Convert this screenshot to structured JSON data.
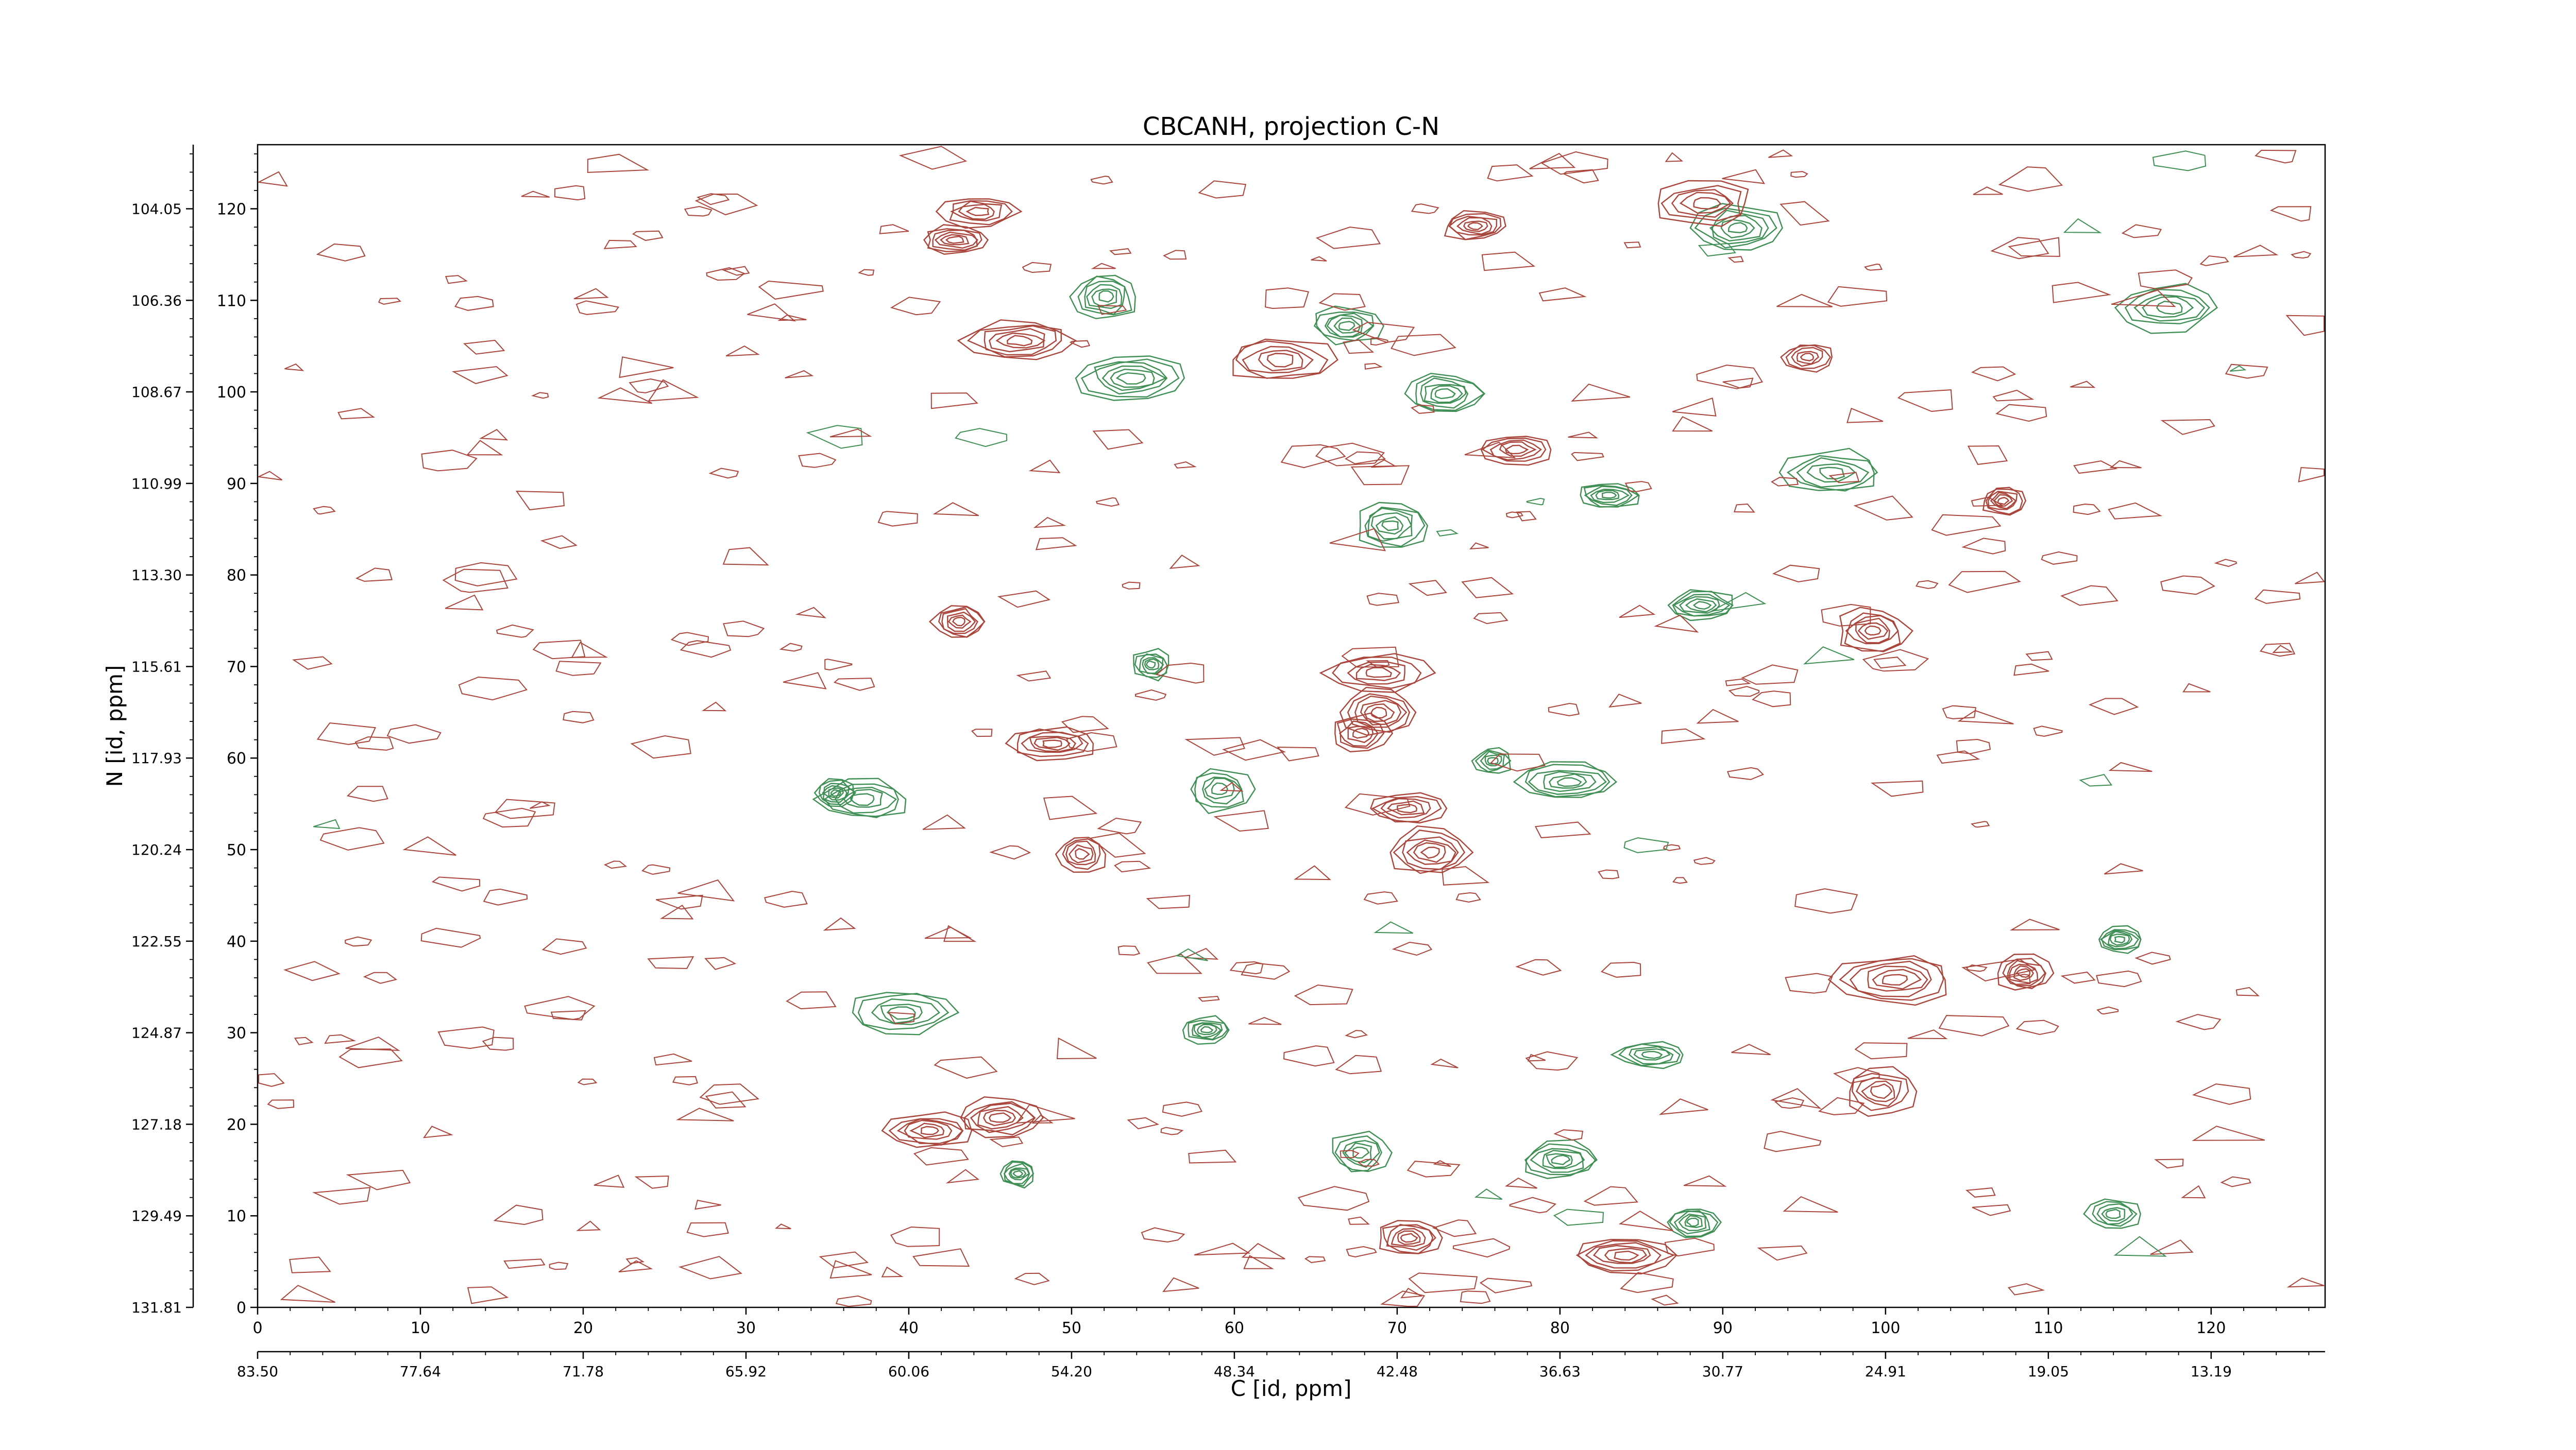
{
  "chart_data": {
    "type": "contour",
    "title": "CBCANH, projection C-N",
    "xlabel": "C [id, ppm]",
    "ylabel": "N [id, ppm]",
    "x_index_axis": {
      "range": [
        0,
        127
      ],
      "ticks": [
        0,
        10,
        20,
        30,
        40,
        50,
        60,
        70,
        80,
        90,
        100,
        110,
        120
      ],
      "tick_labels": [
        "0",
        "10",
        "20",
        "30",
        "40",
        "50",
        "60",
        "70",
        "80",
        "90",
        "100",
        "110",
        "120"
      ]
    },
    "x_ppm_axis": {
      "tick_positions": [
        0,
        10,
        20,
        30,
        40,
        50,
        60,
        70,
        80,
        90,
        100,
        110,
        120
      ],
      "tick_labels": [
        "83.50",
        "77.64",
        "71.78",
        "65.92",
        "60.06",
        "54.20",
        "48.34",
        "42.48",
        "36.63",
        "30.77",
        "24.91",
        "19.05",
        "13.19"
      ]
    },
    "y_index_axis": {
      "range": [
        0,
        127
      ],
      "ticks": [
        0,
        10,
        20,
        30,
        40,
        50,
        60,
        70,
        80,
        90,
        100,
        110,
        120
      ],
      "tick_labels": [
        "0",
        "10",
        "20",
        "30",
        "40",
        "50",
        "60",
        "70",
        "80",
        "90",
        "100",
        "110",
        "120"
      ]
    },
    "y_ppm_axis": {
      "tick_positions": [
        0,
        10,
        20,
        30,
        40,
        50,
        60,
        70,
        80,
        90,
        100,
        110,
        120
      ],
      "tick_labels": [
        "131.81",
        "129.49",
        "127.18",
        "124.87",
        "122.55",
        "120.24",
        "117.93",
        "115.61",
        "113.30",
        "110.99",
        "108.67",
        "106.36",
        "104.05"
      ]
    },
    "series": [
      {
        "sign": "positive",
        "color": "#a9453b"
      },
      {
        "sign": "negative",
        "color": "#3f8f55"
      }
    ],
    "peaks": [
      {
        "x": 84.0,
        "y": 5.7,
        "levels": 6,
        "sign": "positive"
      },
      {
        "x": 70.7,
        "y": 7.6,
        "levels": 6,
        "sign": "positive"
      },
      {
        "x": 88.2,
        "y": 9.3,
        "levels": 6,
        "sign": "negative"
      },
      {
        "x": 114.0,
        "y": 10.2,
        "levels": 5,
        "sign": "negative"
      },
      {
        "x": 46.7,
        "y": 14.6,
        "levels": 6,
        "sign": "negative"
      },
      {
        "x": 67.7,
        "y": 16.9,
        "levels": 5,
        "sign": "negative"
      },
      {
        "x": 80.0,
        "y": 16.1,
        "levels": 6,
        "sign": "negative"
      },
      {
        "x": 41.3,
        "y": 19.3,
        "levels": 6,
        "sign": "positive"
      },
      {
        "x": 45.6,
        "y": 20.7,
        "levels": 6,
        "sign": "positive"
      },
      {
        "x": 99.7,
        "y": 23.6,
        "levels": 5,
        "sign": "positive"
      },
      {
        "x": 85.6,
        "y": 27.6,
        "levels": 5,
        "sign": "negative"
      },
      {
        "x": 58.3,
        "y": 30.3,
        "levels": 6,
        "sign": "negative"
      },
      {
        "x": 39.6,
        "y": 32.2,
        "levels": 5,
        "sign": "negative"
      },
      {
        "x": 100.6,
        "y": 35.8,
        "levels": 6,
        "sign": "positive"
      },
      {
        "x": 108.5,
        "y": 36.5,
        "levels": 6,
        "sign": "positive"
      },
      {
        "x": 114.4,
        "y": 40.2,
        "levels": 6,
        "sign": "negative"
      },
      {
        "x": 72.1,
        "y": 49.7,
        "levels": 6,
        "sign": "positive"
      },
      {
        "x": 70.6,
        "y": 54.5,
        "levels": 5,
        "sign": "positive"
      },
      {
        "x": 35.5,
        "y": 56.2,
        "levels": 6,
        "sign": "negative"
      },
      {
        "x": 59.1,
        "y": 56.6,
        "levels": 5,
        "sign": "negative"
      },
      {
        "x": 80.5,
        "y": 57.4,
        "levels": 6,
        "sign": "negative"
      },
      {
        "x": 67.7,
        "y": 62.7,
        "levels": 5,
        "sign": "positive"
      },
      {
        "x": 68.9,
        "y": 65.0,
        "levels": 6,
        "sign": "positive"
      },
      {
        "x": 68.8,
        "y": 69.3,
        "levels": 5,
        "sign": "positive"
      },
      {
        "x": 54.9,
        "y": 70.2,
        "levels": 6,
        "sign": "negative"
      },
      {
        "x": 99.2,
        "y": 73.9,
        "levels": 6,
        "sign": "positive"
      },
      {
        "x": 43.1,
        "y": 74.9,
        "levels": 6,
        "sign": "positive"
      },
      {
        "x": 88.7,
        "y": 76.7,
        "levels": 6,
        "sign": "negative"
      },
      {
        "x": 69.6,
        "y": 85.4,
        "levels": 6,
        "sign": "negative"
      },
      {
        "x": 107.2,
        "y": 88.1,
        "levels": 6,
        "sign": "positive"
      },
      {
        "x": 83.0,
        "y": 88.7,
        "levels": 6,
        "sign": "negative"
      },
      {
        "x": 96.7,
        "y": 91.2,
        "levels": 5,
        "sign": "negative"
      },
      {
        "x": 77.3,
        "y": 93.7,
        "levels": 5,
        "sign": "positive"
      },
      {
        "x": 72.9,
        "y": 99.8,
        "levels": 6,
        "sign": "negative"
      },
      {
        "x": 53.7,
        "y": 101.5,
        "levels": 6,
        "sign": "negative"
      },
      {
        "x": 62.8,
        "y": 103.5,
        "levels": 5,
        "sign": "positive"
      },
      {
        "x": 46.8,
        "y": 105.6,
        "levels": 6,
        "sign": "positive"
      },
      {
        "x": 66.9,
        "y": 107.2,
        "levels": 6,
        "sign": "negative"
      },
      {
        "x": 117.4,
        "y": 109.2,
        "levels": 5,
        "sign": "negative"
      },
      {
        "x": 52.1,
        "y": 110.4,
        "levels": 6,
        "sign": "negative"
      },
      {
        "x": 42.9,
        "y": 116.6,
        "levels": 6,
        "sign": "positive"
      },
      {
        "x": 90.9,
        "y": 117.9,
        "levels": 6,
        "sign": "negative"
      },
      {
        "x": 74.8,
        "y": 118.1,
        "levels": 6,
        "sign": "positive"
      },
      {
        "x": 44.3,
        "y": 119.7,
        "levels": 5,
        "sign": "positive"
      },
      {
        "x": 88.9,
        "y": 120.6,
        "levels": 5,
        "sign": "positive"
      },
      {
        "x": 48.8,
        "y": 61.6,
        "levels": 6,
        "sign": "positive"
      },
      {
        "x": 37.2,
        "y": 55.5,
        "levels": 5,
        "sign": "negative"
      },
      {
        "x": 95.2,
        "y": 103.8,
        "levels": 5,
        "sign": "positive"
      },
      {
        "x": 75.9,
        "y": 59.7,
        "levels": 5,
        "sign": "negative"
      },
      {
        "x": 50.6,
        "y": 49.5,
        "levels": 5,
        "sign": "positive"
      }
    ]
  }
}
